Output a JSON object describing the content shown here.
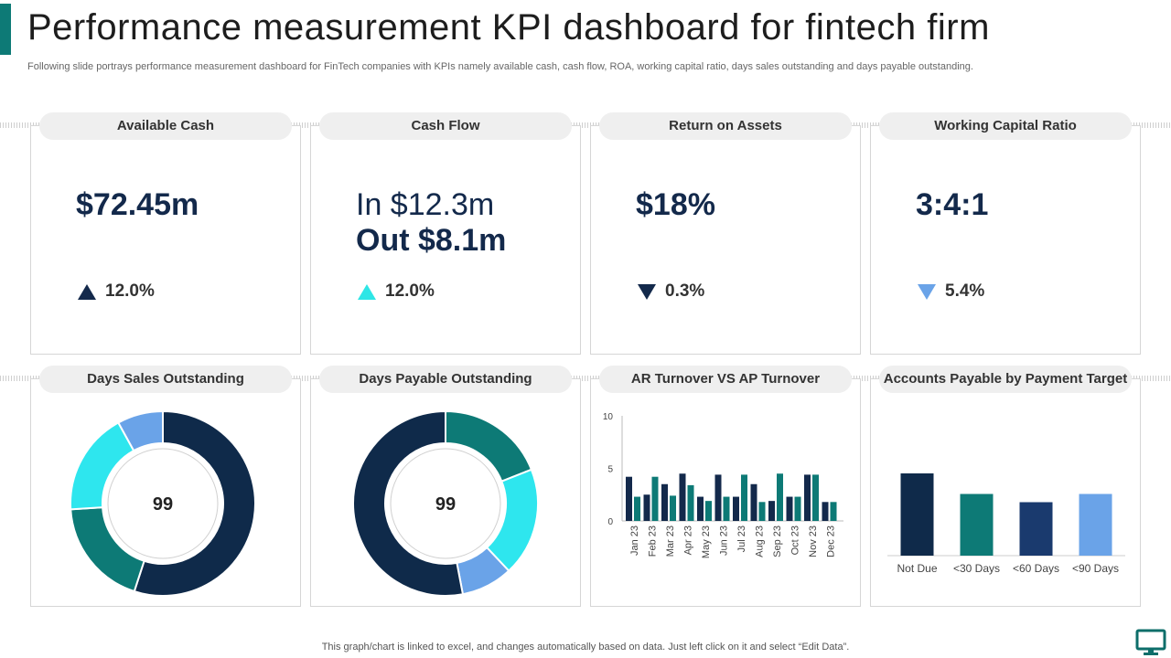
{
  "header": {
    "title": "Performance measurement KPI dashboard for fintech firm",
    "subtitle": "Following slide portrays performance measurement dashboard for FinTech companies with KPIs namely available cash, cash flow, ROA,  working capital ratio, days sales outstanding and days payable outstanding."
  },
  "kpis": {
    "available_cash": {
      "label": "Available Cash",
      "value": "$72.45m",
      "change": "12.0%",
      "direction": "up",
      "color": "#13294b"
    },
    "cash_flow": {
      "label": "Cash Flow",
      "value_in": "In $12.3m",
      "value_out": "Out $8.1m",
      "change": "12.0%",
      "direction": "up",
      "color": "#2ee6e6"
    },
    "roa": {
      "label": "Return on Assets",
      "value": "$18%",
      "change": "0.3%",
      "direction": "down",
      "color": "#13294b"
    },
    "wcr": {
      "label": "Working Capital Ratio",
      "value": "3:4:1",
      "change": "5.4%",
      "direction": "down",
      "color": "#6aa3e8"
    }
  },
  "charts": {
    "dso_title": "Days Sales Outstanding",
    "dpo_title": "Days Payable Outstanding",
    "ar_ap_title": "AR Turnover VS AP Turnover",
    "ap_target_title": "Accounts Payable by Payment Target"
  },
  "chart_data": [
    {
      "type": "pie",
      "title": "Days Sales Outstanding",
      "center_label": "99",
      "slices": [
        {
          "value": 55,
          "color": "#0f2a4a"
        },
        {
          "value": 19,
          "color": "#0d7a76"
        },
        {
          "value": 18,
          "color": "#2ee6ee"
        },
        {
          "value": 8,
          "color": "#6aa3e8"
        }
      ]
    },
    {
      "type": "pie",
      "title": "Days Payable Outstanding",
      "center_label": "99",
      "slices": [
        {
          "value": 19,
          "color": "#0d7a76"
        },
        {
          "value": 19,
          "color": "#2ee6ee"
        },
        {
          "value": 9,
          "color": "#6aa3e8"
        },
        {
          "value": 53,
          "color": "#0f2a4a"
        }
      ]
    },
    {
      "type": "bar",
      "title": "AR Turnover VS AP Turnover",
      "categories": [
        "Jan 23",
        "Feb 23",
        "Mar 23",
        "Apr 23",
        "May 23",
        "Jun 23",
        "Jul 23",
        "Aug 23",
        "Sep 23",
        "Oct 23",
        "Nov 23",
        "Dec 23"
      ],
      "series": [
        {
          "name": "AR Turnover",
          "color": "#13294b",
          "values": [
            4.2,
            2.5,
            3.5,
            4.5,
            2.3,
            4.4,
            2.3,
            3.5,
            1.9,
            2.3,
            4.4,
            1.8
          ]
        },
        {
          "name": "AP Turnover",
          "color": "#0d7a76",
          "values": [
            2.3,
            4.2,
            2.4,
            3.4,
            1.9,
            2.3,
            4.4,
            1.8,
            4.5,
            2.3,
            4.4,
            1.8
          ]
        }
      ],
      "yticks": [
        "0",
        "5",
        "10"
      ],
      "ylim": [
        0,
        10
      ]
    },
    {
      "type": "bar",
      "title": "Accounts Payable by Payment Target",
      "categories": [
        "Not Due",
        "<30 Days",
        "<60 Days",
        "<90 Days"
      ],
      "values": [
        10,
        7.5,
        6.5,
        7.5
      ],
      "colors": [
        "#0f2a4a",
        "#0d7a76",
        "#1a3a6e",
        "#6aa3e8"
      ],
      "ylim": [
        0,
        20
      ]
    }
  ],
  "footer": {
    "note": "This graph/chart is linked to excel,  and changes automatically based on data. Just left click on it and select “Edit Data”."
  }
}
